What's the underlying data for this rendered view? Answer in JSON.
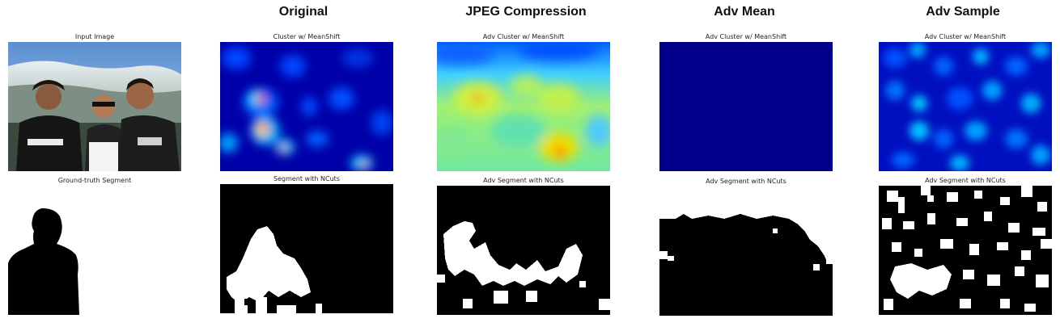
{
  "column_titles": [
    "Original",
    "JPEG Compression",
    "Adv Mean",
    "Adv Sample"
  ],
  "input_column": {
    "top_label": "Input Image",
    "bottom_label": "Ground-truth Segment"
  },
  "columns": [
    {
      "top_label": "Cluster w/ MeanShift",
      "bottom_label": "Segment with NCuts"
    },
    {
      "top_label": "Adv Cluster w/ MeanShift",
      "bottom_label": "Adv Segment with NCuts"
    },
    {
      "top_label": "Adv Cluster w/ MeanShift",
      "bottom_label": "Adv Segment with NCuts"
    },
    {
      "top_label": "Adv Cluster w/ MeanShift",
      "bottom_label": "Adv Segment with NCuts"
    }
  ],
  "colors": {
    "heat_low": "#00008f",
    "heat_mid": "#00c8ff",
    "heat_high": "#ffe000",
    "heat_peak": "#ff2000",
    "segment_fg": "#000000",
    "segment_bg": "#ffffff"
  }
}
